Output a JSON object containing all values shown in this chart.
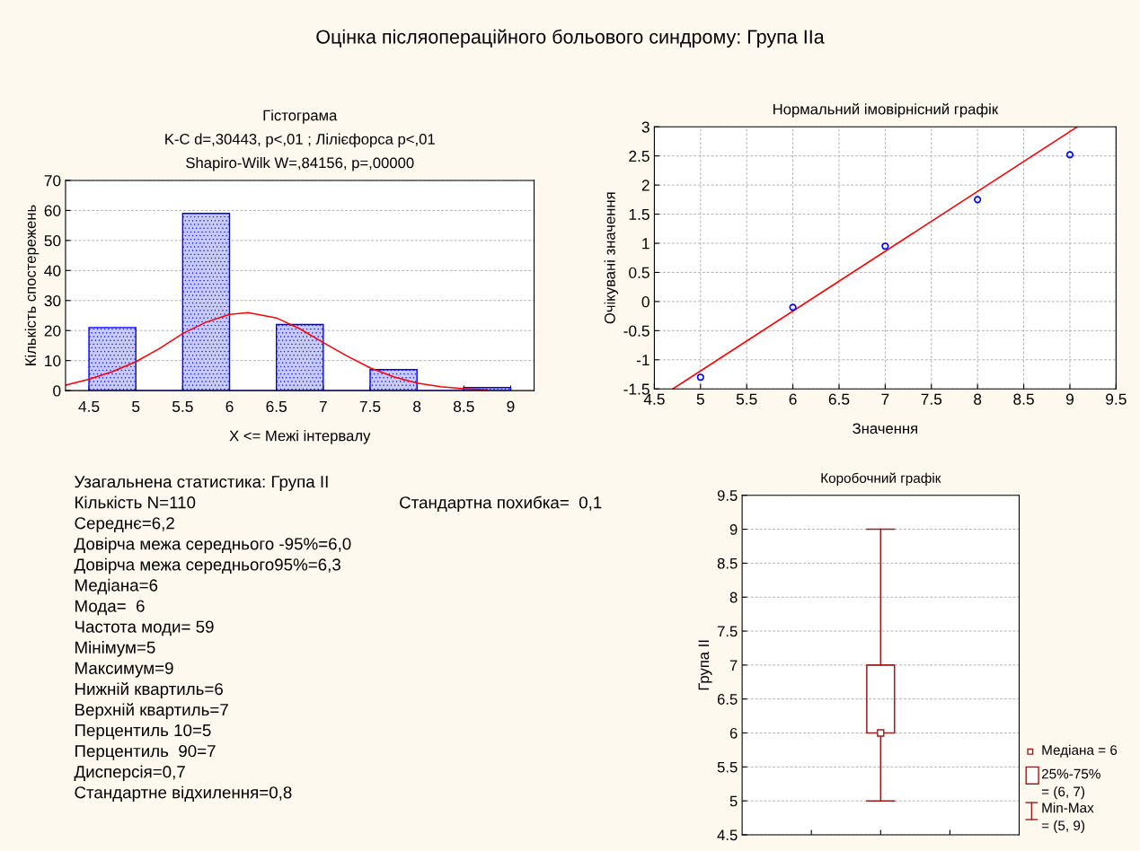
{
  "chart_data": [
    {
      "type": "histogram",
      "title": "Гістограма",
      "subtitle": "K-C d=,30443, p<,01 ; Лілієфорса p<,01\nShapiro-Wilk W=,84156, p=,00000",
      "annotations": [
        "Оцінка післяопераційного больового синдрому: Група IIa"
      ],
      "xlabel": "X <= Межі інтервалу",
      "ylabel": "Кількість спостережень",
      "bins": [
        4.5,
        5,
        5.5,
        6,
        6.5,
        7,
        7.5,
        8,
        8.5,
        9
      ],
      "values": [
        21,
        0,
        59,
        0,
        22,
        0,
        7,
        0,
        1
      ],
      "color": "#0000ff",
      "series": [
        {
          "type": "line",
          "color": "#ff0000",
          "x": [
            4.25,
            4.5,
            4.75,
            5,
            5.25,
            5.5,
            5.75,
            6,
            6.2,
            6.5,
            6.75,
            7,
            7.25,
            7.5,
            7.75,
            8,
            8.25,
            8.5,
            8.75
          ],
          "values": [
            1.8,
            3.8,
            6.3,
            9.6,
            14,
            19,
            22.8,
            25.4,
            26,
            24.2,
            20.6,
            16,
            11.6,
            7.6,
            4.6,
            2.5,
            1.3,
            0.6,
            0.3
          ]
        }
      ],
      "xlim": [
        4.25,
        9.25
      ],
      "xticks": [
        4.5,
        5,
        5.5,
        6,
        6.5,
        7,
        7.5,
        8,
        8.5,
        9
      ],
      "ylim": [
        0,
        70
      ],
      "yticks": [
        0,
        10,
        20,
        30,
        40,
        50,
        60,
        70
      ],
      "grid": "y"
    },
    {
      "type": "scatter",
      "title": "Нормальний імовірнісний графік",
      "xlabel": "Значення",
      "ylabel": "Очікувані значення",
      "series": [
        {
          "type": "scatter",
          "color": "#0000ff",
          "marker": "circle",
          "x": [
            5,
            6,
            7,
            8,
            9
          ],
          "values": [
            -1.3,
            -0.1,
            0.95,
            1.75,
            2.52
          ]
        },
        {
          "type": "line",
          "color": "#ff0000",
          "x": [
            4.7,
            9.08
          ],
          "values": [
            -1.5,
            3.0
          ]
        }
      ],
      "xlim": [
        4.5,
        9.5
      ],
      "xticks": [
        4.5,
        5,
        5.5,
        6,
        6.5,
        7,
        7.5,
        8,
        8.5,
        9,
        9.5
      ],
      "ylim": [
        -1.5,
        3
      ],
      "yticks": [
        -1.5,
        -1,
        -0.5,
        0,
        0.5,
        1,
        1.5,
        2,
        2.5,
        3
      ],
      "grid": true
    },
    {
      "type": "other",
      "title": "Узагальнена статистика: Група II",
      "annotations": [
        "Кількість N=110",
        "Стандартна похибка=  0,1",
        "Середнє=6,2",
        "Довірча межа середнього -95%=6,0",
        "Довірча межа середнього95%=6,3",
        "Медіана=6",
        "Мода=  6",
        "Частота моди= 59",
        "Мінімум=5",
        "Максимум=9",
        "Нижній квартиль=6",
        "Верхній квартиль=7",
        "Перцентиль 10=5",
        "Перцентиль  90=7",
        "Дисперсія=0,7",
        "Стандартне відхилення=0,8"
      ]
    },
    {
      "type": "box",
      "title": "Коробочний графік",
      "ylabel": "Група II",
      "categories": [
        null
      ],
      "color": "#9b1c1c",
      "boxes": [
        {
          "low": 5,
          "q1": 6,
          "median": 6,
          "q3": 7,
          "high": 9
        }
      ],
      "annotations": [
        "Медіана = 6",
        "25%-75%\n= (6, 7)",
        "Min-Max\n= (5, 9)"
      ],
      "ylim": [
        4.5,
        9.5
      ],
      "yticks": [
        4.5,
        5,
        5.5,
        6,
        6.5,
        7,
        7.5,
        8,
        8.5,
        9,
        9.5
      ],
      "grid": "y"
    }
  ]
}
